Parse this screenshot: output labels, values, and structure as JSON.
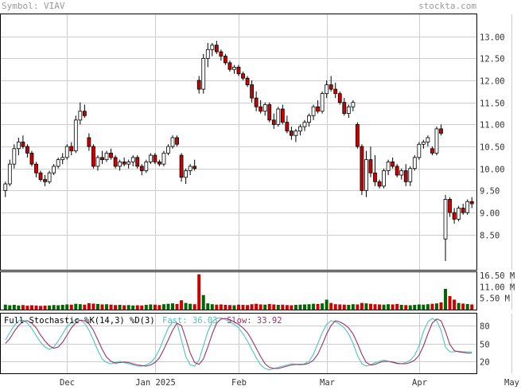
{
  "header": {
    "symbol_text": "Symbol: VIAV",
    "site": "stockta.com"
  },
  "stochastic": {
    "label": "Full Stochastic %K(14,3) %D(3)",
    "fast_label": "Fast: 36.03",
    "slow_label": "Slow: 33.92"
  },
  "colors": {
    "up_fill": "#ffffff",
    "down_fill": "#cc0000",
    "up_volume": "#006600",
    "down_volume": "#cc0000",
    "fast_line": "#4fc3c3",
    "slow_line": "#993366",
    "grid": "#cccccc",
    "header_text": "#999999"
  },
  "chart_data": [
    {
      "type": "candlestick",
      "title": "",
      "price_ticks": [
        "13.00",
        "12.50",
        "12.00",
        "11.50",
        "11.00",
        "10.50",
        "10.00",
        "9.50",
        "9.00",
        "8.50"
      ],
      "ylim": [
        7.7,
        13.5
      ],
      "x_tick_labels": [
        "Dec",
        "Jan 2025",
        "Feb",
        "Mar",
        "Apr",
        "May"
      ],
      "x_tick_index": [
        14,
        34,
        53,
        73,
        94,
        115
      ],
      "grid": true,
      "candles": [
        [
          9.5,
          9.7,
          9.35,
          9.65
        ],
        [
          9.65,
          10.2,
          9.6,
          10.1
        ],
        [
          10.1,
          10.55,
          10.0,
          10.45
        ],
        [
          10.45,
          10.7,
          10.3,
          10.6
        ],
        [
          10.6,
          10.75,
          10.45,
          10.5
        ],
        [
          10.5,
          10.55,
          10.25,
          10.35
        ],
        [
          10.35,
          10.4,
          10.05,
          10.1
        ],
        [
          10.1,
          10.15,
          9.8,
          9.9
        ],
        [
          9.9,
          9.95,
          9.7,
          9.75
        ],
        [
          9.75,
          9.85,
          9.6,
          9.7
        ],
        [
          9.7,
          9.95,
          9.65,
          9.9
        ],
        [
          9.9,
          10.1,
          9.85,
          10.05
        ],
        [
          10.05,
          10.25,
          10.0,
          10.2
        ],
        [
          10.2,
          10.35,
          10.1,
          10.25
        ],
        [
          10.25,
          10.55,
          10.2,
          10.5
        ],
        [
          10.5,
          10.6,
          10.3,
          10.4
        ],
        [
          10.4,
          11.2,
          10.35,
          11.1
        ],
        [
          11.1,
          11.5,
          11.0,
          11.3
        ],
        [
          11.3,
          11.45,
          11.15,
          11.2
        ],
        [
          10.7,
          10.8,
          10.4,
          10.5
        ],
        [
          10.5,
          10.55,
          10.0,
          10.05
        ],
        [
          10.05,
          10.3,
          9.95,
          10.25
        ],
        [
          10.25,
          10.4,
          10.1,
          10.2
        ],
        [
          10.2,
          10.4,
          10.15,
          10.35
        ],
        [
          10.35,
          10.45,
          10.2,
          10.25
        ],
        [
          10.25,
          10.3,
          10.0,
          10.05
        ],
        [
          10.05,
          10.2,
          9.95,
          10.15
        ],
        [
          10.15,
          10.25,
          10.05,
          10.1
        ],
        [
          10.1,
          10.2,
          10.0,
          10.15
        ],
        [
          10.15,
          10.3,
          10.05,
          10.25
        ],
        [
          10.25,
          10.3,
          10.0,
          10.05
        ],
        [
          10.05,
          10.1,
          9.85,
          9.95
        ],
        [
          9.95,
          10.2,
          9.9,
          10.15
        ],
        [
          10.15,
          10.35,
          10.1,
          10.3
        ],
        [
          10.3,
          10.35,
          10.1,
          10.15
        ],
        [
          10.15,
          10.2,
          10.05,
          10.1
        ],
        [
          10.1,
          10.4,
          10.05,
          10.35
        ],
        [
          10.35,
          10.55,
          10.3,
          10.5
        ],
        [
          10.5,
          10.75,
          10.45,
          10.7
        ],
        [
          10.7,
          10.75,
          10.5,
          10.55
        ],
        [
          10.3,
          10.35,
          9.7,
          9.8
        ],
        [
          9.8,
          10.0,
          9.65,
          9.95
        ],
        [
          9.95,
          10.1,
          9.85,
          10.05
        ],
        [
          10.05,
          10.2,
          9.95,
          10.0
        ],
        [
          12.0,
          12.1,
          11.7,
          11.8
        ],
        [
          11.8,
          12.6,
          11.7,
          12.5
        ],
        [
          12.5,
          12.85,
          12.3,
          12.7
        ],
        [
          12.7,
          12.85,
          12.55,
          12.8
        ],
        [
          12.8,
          12.9,
          12.6,
          12.65
        ],
        [
          12.65,
          12.7,
          12.45,
          12.55
        ],
        [
          12.55,
          12.6,
          12.35,
          12.4
        ],
        [
          12.4,
          12.45,
          12.2,
          12.25
        ],
        [
          12.25,
          12.35,
          12.15,
          12.3
        ],
        [
          12.3,
          12.35,
          12.1,
          12.15
        ],
        [
          12.15,
          12.2,
          12.0,
          12.05
        ],
        [
          12.05,
          12.1,
          11.85,
          11.9
        ],
        [
          11.9,
          12.0,
          11.5,
          11.6
        ],
        [
          11.6,
          11.75,
          11.3,
          11.4
        ],
        [
          11.4,
          11.55,
          11.25,
          11.3
        ],
        [
          11.3,
          11.5,
          11.2,
          11.45
        ],
        [
          11.45,
          11.5,
          11.05,
          11.1
        ],
        [
          11.1,
          11.25,
          10.9,
          11.0
        ],
        [
          11.0,
          11.4,
          10.95,
          11.35
        ],
        [
          11.35,
          11.45,
          11.0,
          11.05
        ],
        [
          11.05,
          11.2,
          10.8,
          10.85
        ],
        [
          10.85,
          10.95,
          10.65,
          10.75
        ],
        [
          10.75,
          10.9,
          10.6,
          10.85
        ],
        [
          10.85,
          11.0,
          10.75,
          10.95
        ],
        [
          10.95,
          11.1,
          10.85,
          11.05
        ],
        [
          11.05,
          11.25,
          10.95,
          11.2
        ],
        [
          11.2,
          11.45,
          11.1,
          11.4
        ],
        [
          11.4,
          11.55,
          11.25,
          11.3
        ],
        [
          11.3,
          11.75,
          11.25,
          11.7
        ],
        [
          11.7,
          12.0,
          11.6,
          11.9
        ],
        [
          11.9,
          12.1,
          11.75,
          11.8
        ],
        [
          11.8,
          11.95,
          11.6,
          11.7
        ],
        [
          11.7,
          11.75,
          11.45,
          11.5
        ],
        [
          11.5,
          11.6,
          11.2,
          11.25
        ],
        [
          11.25,
          11.45,
          11.15,
          11.4
        ],
        [
          11.4,
          11.55,
          11.3,
          11.5
        ],
        [
          11.0,
          11.05,
          10.45,
          10.5
        ],
        [
          10.5,
          10.55,
          9.4,
          9.5
        ],
        [
          9.5,
          10.4,
          9.35,
          10.2
        ],
        [
          10.2,
          10.5,
          9.8,
          9.9
        ],
        [
          9.9,
          10.3,
          9.6,
          9.7
        ],
        [
          9.7,
          9.75,
          9.55,
          9.6
        ],
        [
          9.6,
          10.0,
          9.55,
          9.95
        ],
        [
          9.95,
          10.2,
          9.85,
          10.15
        ],
        [
          10.15,
          10.25,
          10.0,
          10.05
        ],
        [
          10.05,
          10.1,
          9.8,
          9.85
        ],
        [
          9.85,
          10.0,
          9.75,
          9.95
        ],
        [
          9.95,
          10.1,
          9.6,
          9.7
        ],
        [
          9.7,
          10.05,
          9.6,
          10.0
        ],
        [
          10.0,
          10.3,
          9.95,
          10.25
        ],
        [
          10.25,
          10.6,
          10.2,
          10.55
        ],
        [
          10.55,
          10.65,
          10.45,
          10.6
        ],
        [
          10.6,
          10.75,
          10.5,
          10.7
        ],
        [
          10.45,
          10.5,
          10.3,
          10.35
        ],
        [
          10.35,
          10.95,
          10.3,
          10.9
        ],
        [
          10.9,
          11.0,
          10.75,
          10.8
        ],
        [
          8.4,
          9.4,
          7.9,
          9.3
        ],
        [
          9.3,
          9.35,
          8.9,
          9.0
        ],
        [
          9.0,
          9.1,
          8.75,
          8.85
        ],
        [
          8.85,
          9.15,
          8.8,
          9.1
        ],
        [
          9.1,
          9.2,
          8.95,
          9.0
        ],
        [
          9.0,
          9.3,
          8.95,
          9.25
        ],
        [
          9.25,
          9.35,
          9.1,
          9.2
        ]
      ]
    },
    {
      "type": "bar",
      "title": "",
      "volume_ticks": [
        "16.50 M",
        "11.00 M",
        "5.50 M"
      ],
      "ylim": [
        0,
        18
      ],
      "values": [
        2.4,
        2.1,
        2.3,
        2.0,
        2.2,
        1.9,
        2.1,
        2.0,
        1.8,
        1.9,
        2.0,
        2.2,
        2.1,
        2.3,
        2.5,
        2.4,
        2.8,
        2.6,
        2.4,
        3.1,
        2.9,
        2.7,
        2.5,
        2.6,
        2.4,
        2.2,
        2.3,
        2.1,
        2.2,
        2.0,
        2.1,
        2.0,
        2.3,
        2.5,
        2.4,
        2.2,
        2.6,
        2.8,
        3.0,
        2.7,
        4.5,
        3.2,
        2.8,
        2.6,
        17.0,
        7.0,
        3.0,
        2.6,
        2.4,
        2.5,
        2.3,
        2.2,
        2.1,
        2.4,
        2.3,
        2.2,
        2.6,
        2.8,
        2.5,
        2.4,
        2.7,
        2.5,
        2.3,
        2.4,
        2.2,
        2.1,
        2.3,
        2.4,
        2.5,
        2.6,
        2.8,
        2.7,
        3.0,
        4.8,
        3.2,
        2.6,
        2.5,
        2.4,
        2.3,
        2.6,
        2.5,
        3.2,
        3.0,
        2.8,
        2.6,
        2.5,
        2.4,
        2.6,
        2.5,
        2.7,
        2.3,
        2.2,
        2.1,
        2.3,
        2.5,
        2.4,
        2.6,
        2.8,
        3.0,
        3.5,
        10.0,
        6.5,
        4.8,
        3.2,
        2.9,
        2.7,
        2.5
      ]
    },
    {
      "type": "line",
      "title": "",
      "stoch_ticks": [
        "80",
        "50",
        "20"
      ],
      "ylim": [
        0,
        100
      ],
      "series": [
        {
          "name": "Fast",
          "values": [
            56,
            68,
            80,
            88,
            89,
            84,
            75,
            63,
            52,
            44,
            40,
            44,
            54,
            66,
            78,
            85,
            90,
            89,
            84,
            72,
            56,
            38,
            24,
            18,
            16,
            18,
            20,
            18,
            16,
            14,
            12,
            12,
            14,
            18,
            26,
            40,
            58,
            76,
            86,
            84,
            56,
            28,
            14,
            12,
            22,
            46,
            70,
            86,
            92,
            93,
            90,
            86,
            82,
            76,
            66,
            54,
            40,
            26,
            14,
            8,
            6,
            8,
            10,
            12,
            14,
            16,
            15,
            14,
            16,
            20,
            32,
            50,
            68,
            82,
            88,
            86,
            82,
            76,
            66,
            50,
            30,
            16,
            12,
            14,
            18,
            20,
            22,
            20,
            18,
            16,
            16,
            18,
            22,
            30,
            46,
            70,
            86,
            92,
            88,
            72,
            44,
            36,
            36,
            37,
            36,
            36,
            36
          ]
        },
        {
          "name": "Slow",
          "values": [
            50,
            58,
            70,
            80,
            87,
            88,
            84,
            76,
            64,
            54,
            46,
            42,
            44,
            52,
            64,
            76,
            85,
            89,
            88,
            83,
            72,
            56,
            40,
            27,
            20,
            17,
            18,
            19,
            18,
            16,
            14,
            13,
            12,
            14,
            18,
            26,
            40,
            56,
            72,
            84,
            80,
            58,
            34,
            18,
            15,
            24,
            44,
            66,
            84,
            91,
            92,
            90,
            86,
            82,
            76,
            68,
            56,
            42,
            28,
            16,
            10,
            8,
            8,
            10,
            12,
            14,
            15,
            15,
            15,
            17,
            22,
            32,
            48,
            66,
            80,
            88,
            86,
            82,
            76,
            66,
            50,
            32,
            18,
            14,
            15,
            18,
            20,
            20,
            19,
            17,
            16,
            16,
            18,
            22,
            30,
            46,
            66,
            84,
            91,
            88,
            70,
            48,
            38,
            36,
            35,
            34,
            34
          ]
        }
      ]
    }
  ]
}
